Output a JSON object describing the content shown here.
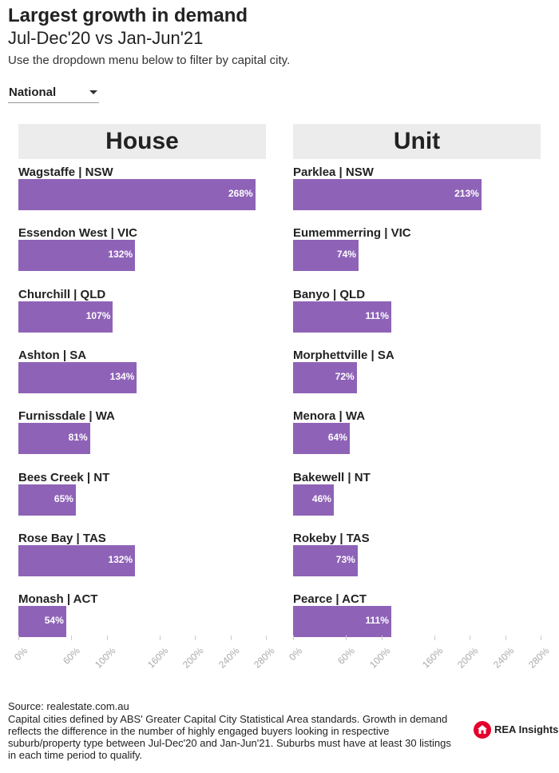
{
  "header": {
    "title": "Largest growth in demand",
    "subtitle": "Jul-Dec'20 vs Jan-Jun'21",
    "instruction": "Use the dropdown menu below to filter by capital city."
  },
  "dropdown": {
    "selected": "National"
  },
  "colors": {
    "bar": "#8e63b7",
    "panel_header_bg": "#ececec",
    "logo_red": "#e4002b"
  },
  "chart_data": [
    {
      "type": "bar",
      "orientation": "horizontal",
      "title": "House",
      "categories": [
        "Wagstaffe | NSW",
        "Essendon West | VIC",
        "Churchill | QLD",
        "Ashton | SA",
        "Furnissdale | WA",
        "Bees Creek | NT",
        "Rose Bay | TAS",
        "Monash | ACT"
      ],
      "values": [
        268,
        132,
        107,
        134,
        81,
        65,
        132,
        54
      ],
      "value_labels": [
        "268%",
        "132%",
        "107%",
        "134%",
        "81%",
        "65%",
        "132%",
        "54%"
      ],
      "xlim": [
        0,
        280
      ],
      "ticks": [
        0,
        60,
        100,
        160,
        200,
        240,
        280
      ],
      "tick_labels": [
        "0%",
        "60%",
        "100%",
        "160%",
        "200%",
        "240%",
        "280%"
      ]
    },
    {
      "type": "bar",
      "orientation": "horizontal",
      "title": "Unit",
      "categories": [
        "Parklea | NSW",
        "Eumemmerring | VIC",
        "Banyo | QLD",
        "Morphettville | SA",
        "Menora | WA",
        "Bakewell | NT",
        "Rokeby | TAS",
        "Pearce | ACT"
      ],
      "values": [
        213,
        74,
        111,
        72,
        64,
        46,
        73,
        111
      ],
      "value_labels": [
        "213%",
        "74%",
        "111%",
        "72%",
        "64%",
        "46%",
        "73%",
        "111%"
      ],
      "xlim": [
        0,
        280
      ],
      "ticks": [
        0,
        60,
        100,
        160,
        200,
        240,
        280
      ],
      "tick_labels": [
        "0%",
        "60%",
        "100%",
        "160%",
        "200%",
        "240%",
        "280%"
      ]
    }
  ],
  "footer": {
    "source": "Source: realestate.com.au",
    "note": "Capital cities defined by ABS' Greater Capital City Statistical Area standards. Growth in demand reflects the difference in the number of highly engaged buyers looking in respective suburb/property type between Jul-Dec'20 and Jan-Jun'21. Suburbs must have at least 30 listings in each time period to qualify.",
    "logo_text": "REA Insights"
  }
}
